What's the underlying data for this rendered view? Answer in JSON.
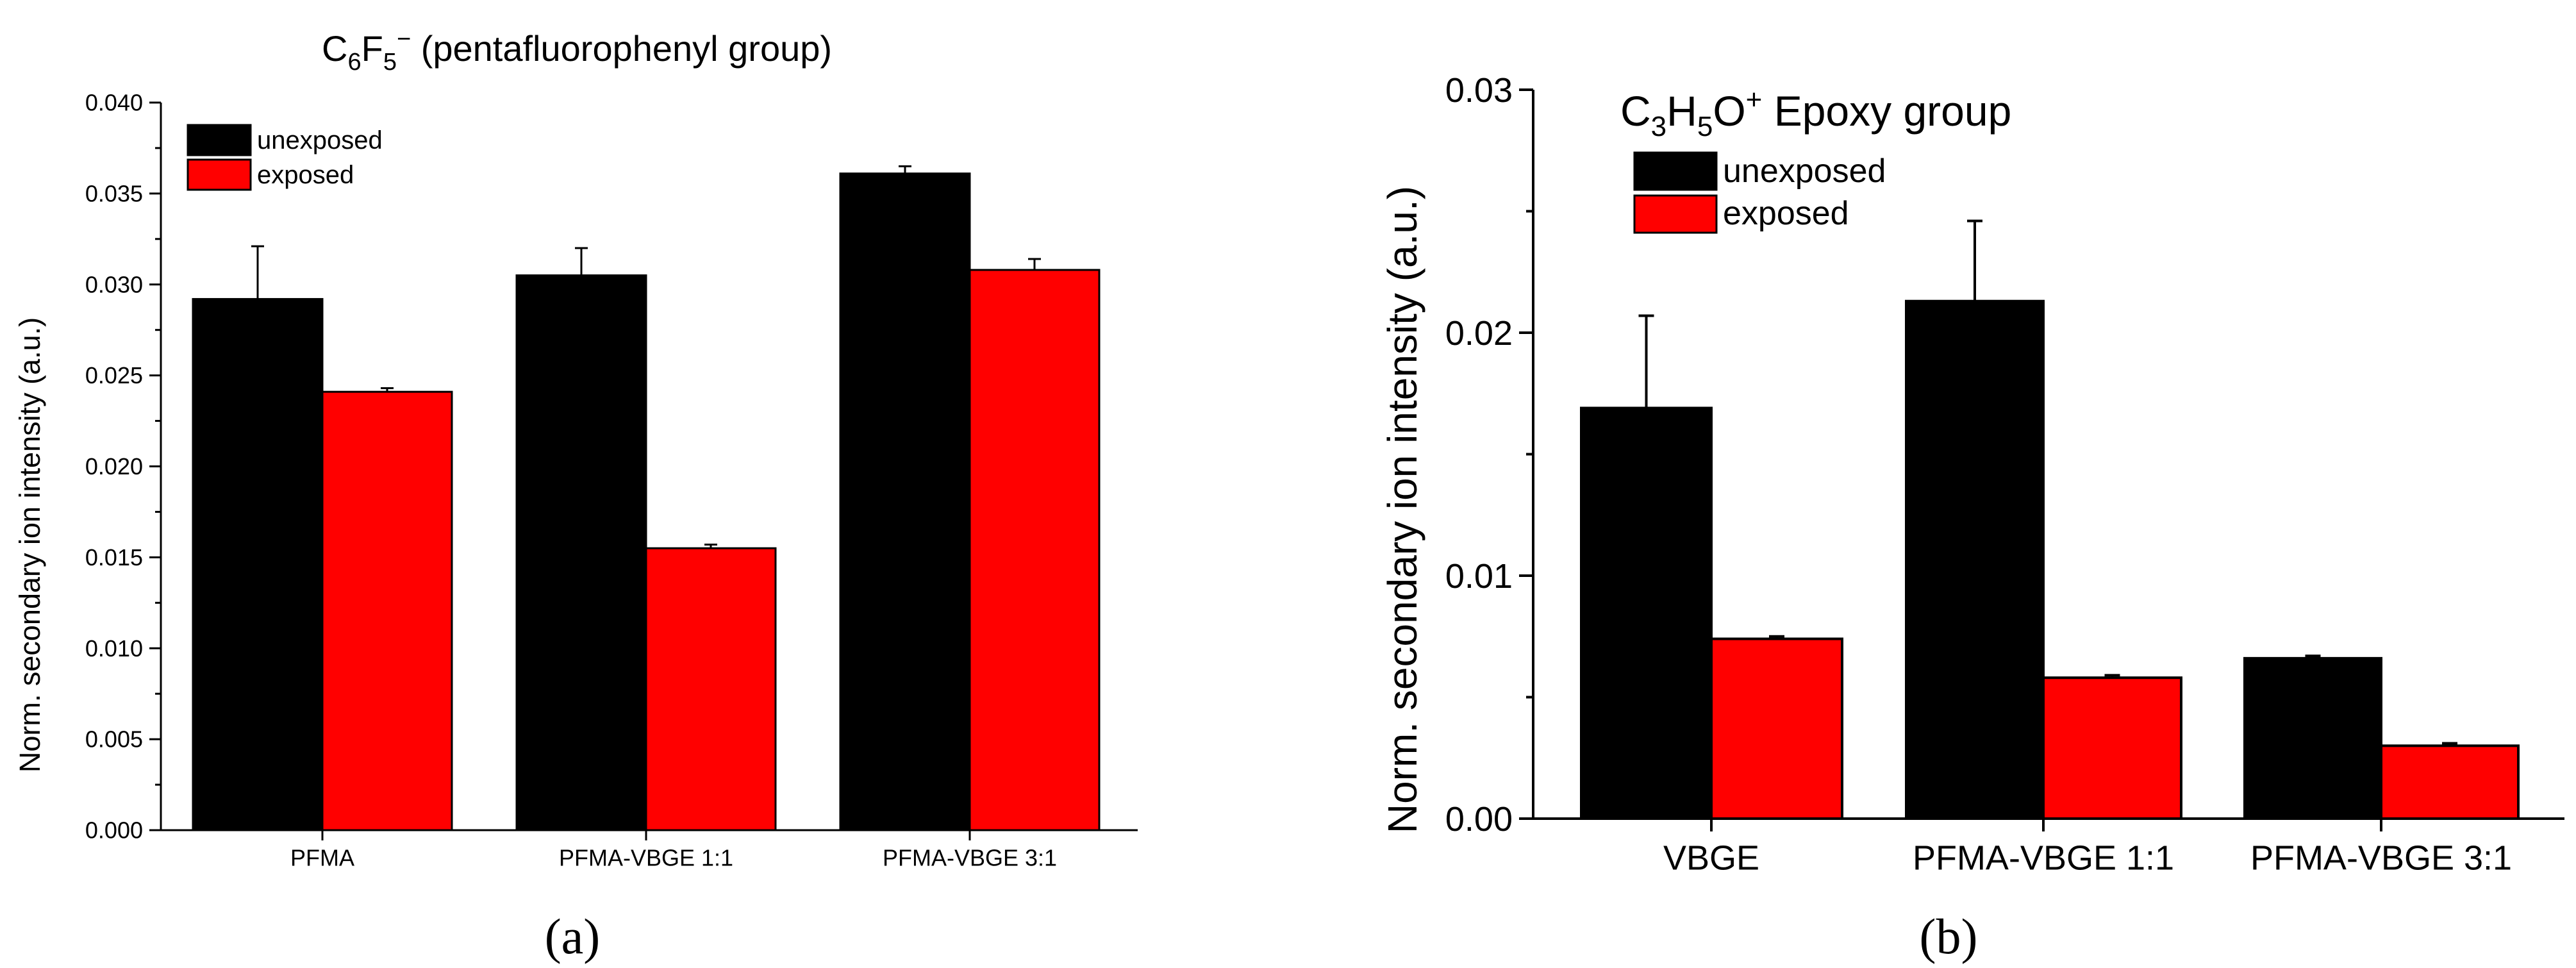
{
  "charts": [
    {
      "panel": "a",
      "panel_label": "(a)",
      "title_parts": {
        "base1": "C",
        "sub1": "6",
        "base2": "F",
        "sub2": "5",
        "sup": "−",
        "rest": " (pentafluorophenyl group)"
      },
      "ylabel": "Norm. secondary ion intensity (a.u.)",
      "legend": [
        "unexposed",
        "exposed"
      ],
      "colors": {
        "unexposed": "#000000",
        "exposed": "#ff0000"
      }
    },
    {
      "panel": "b",
      "panel_label": "(b)",
      "title_parts": {
        "base1": "C",
        "sub1": "3",
        "base2": "H",
        "sub2": "5",
        "base3": "O",
        "sup": "+",
        "rest": "  Epoxy group"
      },
      "ylabel": "Norm. secondary ion intensity (a.u.)",
      "legend": [
        "unexposed",
        "exposed"
      ],
      "colors": {
        "unexposed": "#000000",
        "exposed": "#ff0000"
      }
    }
  ],
  "chart_data": [
    {
      "type": "bar",
      "title": "C6F5− (pentafluorophenyl group)",
      "xlabel": "",
      "ylabel": "Norm. secondary ion intensity (a.u.)",
      "categories": [
        "PFMA",
        "PFMA-VBGE 1:1",
        "PFMA-VBGE 3:1"
      ],
      "series": [
        {
          "name": "unexposed",
          "values": [
            0.0292,
            0.0305,
            0.0361
          ],
          "errors": [
            0.0029,
            0.0015,
            0.0004
          ]
        },
        {
          "name": "exposed",
          "values": [
            0.0241,
            0.0155,
            0.0308
          ],
          "errors": [
            0.0002,
            0.0002,
            0.0006
          ]
        }
      ],
      "ylim": [
        0,
        0.04
      ],
      "yticks": [
        "0.000",
        "0.005",
        "0.010",
        "0.015",
        "0.020",
        "0.025",
        "0.030",
        "0.035",
        "0.040"
      ],
      "ytick_values": [
        0,
        0.005,
        0.01,
        0.015,
        0.02,
        0.025,
        0.03,
        0.035,
        0.04
      ],
      "legend_position": "top-left"
    },
    {
      "type": "bar",
      "title": "C3H5O+ Epoxy group",
      "xlabel": "",
      "ylabel": "Norm. secondary ion intensity (a.u.)",
      "categories": [
        "VBGE",
        "PFMA-VBGE 1:1",
        "PFMA-VBGE 3:1"
      ],
      "series": [
        {
          "name": "unexposed",
          "values": [
            0.0169,
            0.0213,
            0.0066
          ],
          "errors": [
            0.0038,
            0.0033,
            0.0001
          ]
        },
        {
          "name": "exposed",
          "values": [
            0.0074,
            0.0058,
            0.003
          ],
          "errors": [
            0.0001,
            0.0001,
            0.0001
          ]
        }
      ],
      "ylim": [
        0,
        0.03
      ],
      "yticks": [
        "0.00",
        "0.01",
        "0.02",
        "0.03"
      ],
      "ytick_values": [
        0,
        0.01,
        0.02,
        0.03
      ],
      "legend_position": "top-left"
    }
  ]
}
